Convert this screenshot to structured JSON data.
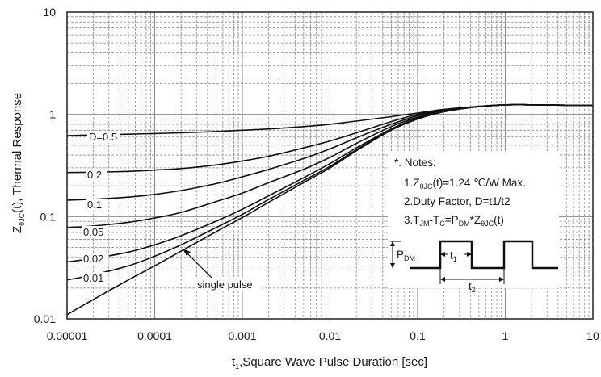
{
  "chart_data": {
    "type": "line",
    "x_scale": "log",
    "y_scale": "log",
    "xlim": [
      1e-05,
      10
    ],
    "ylim": [
      0.01,
      10
    ],
    "grid": true,
    "xlabel": {
      "main": "t",
      "sub": "1",
      "rest": ",Square Wave Pulse Duration [sec]"
    },
    "ylabel": {
      "main": "Z",
      "sub": "θJC",
      "rest": "(t), Thermal Response"
    },
    "x_ticks": [
      {
        "value": 1e-05,
        "label": "0.00001"
      },
      {
        "value": 0.0001,
        "label": "0.0001"
      },
      {
        "value": 0.001,
        "label": "0.001"
      },
      {
        "value": 0.01,
        "label": "0.01"
      },
      {
        "value": 0.1,
        "label": "0.1"
      },
      {
        "value": 1,
        "label": "1"
      },
      {
        "value": 10,
        "label": "10"
      }
    ],
    "y_ticks": [
      {
        "value": 0.01,
        "label": "0.01"
      },
      {
        "value": 0.1,
        "label": "0.1"
      },
      {
        "value": 1,
        "label": "1"
      },
      {
        "value": 10,
        "label": "10"
      }
    ],
    "x": [
      1e-05,
      2e-05,
      5e-05,
      0.0001,
      0.0002,
      0.0005,
      0.001,
      0.002,
      0.005,
      0.01,
      0.02,
      0.05,
      0.1,
      0.2,
      0.5,
      1,
      2,
      5,
      10
    ],
    "series": [
      {
        "name": "D=0.5",
        "values": [
          0.62,
          0.63,
          0.64,
          0.65,
          0.66,
          0.68,
          0.7,
          0.72,
          0.76,
          0.8,
          0.86,
          0.95,
          1.03,
          1.12,
          1.2,
          1.24,
          1.24,
          1.23,
          1.23
        ]
      },
      {
        "name": "0.2",
        "values": [
          0.27,
          0.272,
          0.277,
          0.285,
          0.295,
          0.32,
          0.35,
          0.39,
          0.47,
          0.55,
          0.66,
          0.85,
          1.0,
          1.1,
          1.19,
          1.24,
          1.24,
          1.23,
          1.23
        ]
      },
      {
        "name": "0.1",
        "values": [
          0.145,
          0.148,
          0.155,
          0.165,
          0.18,
          0.21,
          0.245,
          0.29,
          0.37,
          0.46,
          0.59,
          0.8,
          0.97,
          1.09,
          1.19,
          1.24,
          1.24,
          1.23,
          1.23
        ]
      },
      {
        "name": "0.05",
        "values": [
          0.078,
          0.081,
          0.088,
          0.097,
          0.11,
          0.14,
          0.17,
          0.215,
          0.29,
          0.38,
          0.52,
          0.76,
          0.94,
          1.08,
          1.19,
          1.24,
          1.24,
          1.23,
          1.23
        ]
      },
      {
        "name": "0.02",
        "values": [
          0.036,
          0.039,
          0.045,
          0.053,
          0.065,
          0.09,
          0.118,
          0.16,
          0.24,
          0.33,
          0.47,
          0.72,
          0.92,
          1.07,
          1.19,
          1.24,
          1.24,
          1.23,
          1.23
        ]
      },
      {
        "name": "0.01",
        "values": [
          0.024,
          0.027,
          0.033,
          0.041,
          0.053,
          0.078,
          0.105,
          0.147,
          0.225,
          0.31,
          0.45,
          0.71,
          0.91,
          1.07,
          1.19,
          1.24,
          1.24,
          1.23,
          1.23
        ]
      },
      {
        "name": "single pulse",
        "values": [
          0.011,
          0.0155,
          0.024,
          0.033,
          0.046,
          0.071,
          0.098,
          0.138,
          0.215,
          0.3,
          0.44,
          0.7,
          0.9,
          1.06,
          1.19,
          1.24,
          1.24,
          1.23,
          1.23
        ]
      }
    ],
    "notes": {
      "title": "*. Notes:",
      "line1": {
        "a": "1.Z",
        "sub": "θJC",
        "b": "(t)=1.24 ℃/W Max."
      },
      "line2": "2.Duty Factor, D=t1/t2",
      "line3": {
        "a": "3.T",
        "sub1": "JM",
        "b": "-T",
        "sub2": "C",
        "c": "=P",
        "sub3": "DM",
        "d": "*Z",
        "sub4": "θJC",
        "e": "(t)"
      }
    },
    "diagram": {
      "pdm_main": "P",
      "pdm_sub": "DM",
      "t1_main": "t",
      "t1_sub": "1",
      "t2_main": "t",
      "t2_sub": "2"
    },
    "colors": {
      "curve": "#111111",
      "grid": "#8a8a8a",
      "frame": "#222222"
    }
  }
}
